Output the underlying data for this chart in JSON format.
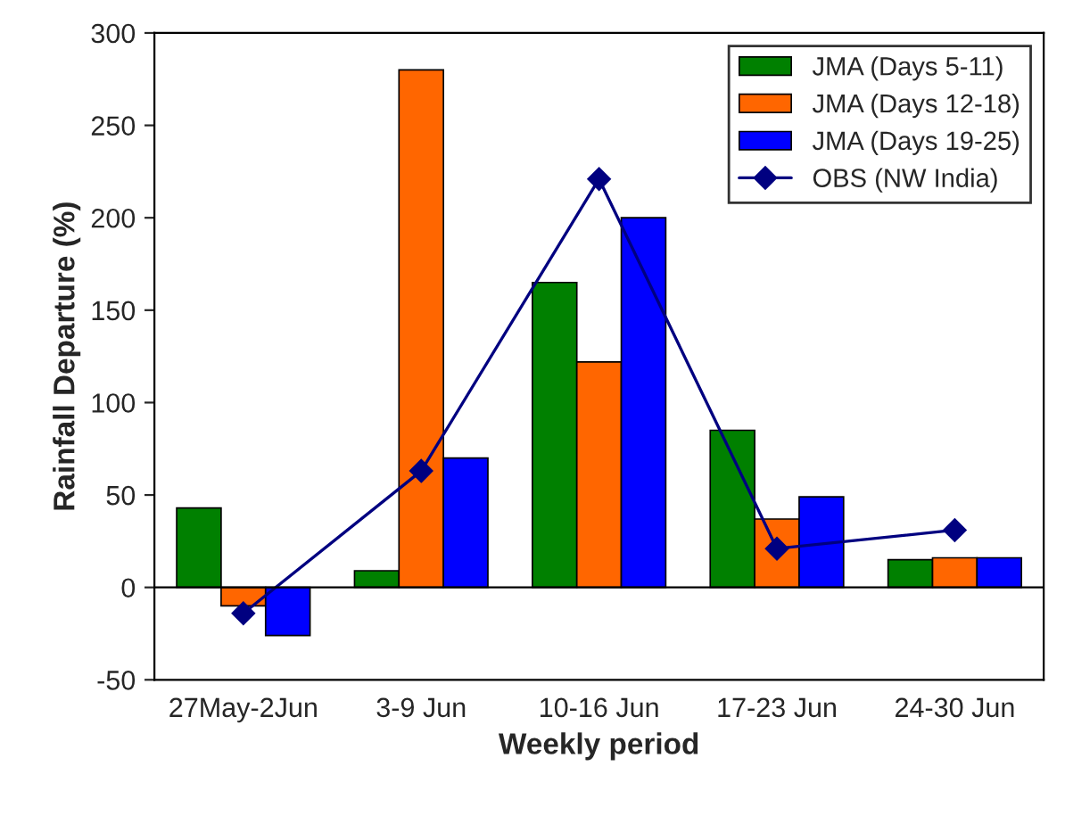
{
  "chart_data": {
    "type": "bar",
    "xlabel": "Weekly period",
    "ylabel": "Rainfall Departure (%)",
    "categories": [
      "27May-2Jun",
      "3-9 Jun",
      "10-16 Jun",
      "17-23 Jun",
      "24-30 Jun"
    ],
    "series": [
      {
        "name": "JMA (Days 5-11)",
        "color": "#008000",
        "values": [
          43,
          9,
          165,
          85,
          15
        ]
      },
      {
        "name": "JMA (Days 12-18)",
        "color": "#ff6600",
        "values": [
          -10,
          280,
          122,
          37,
          16
        ]
      },
      {
        "name": "JMA (Days 19-25)",
        "color": "#0000ff",
        "values": [
          -26,
          70,
          200,
          49,
          16
        ]
      },
      {
        "name": "OBS (NW India)",
        "color": "#000080",
        "type": "line",
        "marker": "diamond",
        "values": [
          -14,
          63,
          221,
          21,
          31
        ]
      }
    ],
    "ylim": [
      -50,
      300
    ],
    "yticks": [
      -50,
      0,
      50,
      100,
      150,
      200,
      250,
      300
    ],
    "grid": false,
    "ref_lines": [
      {
        "axis": "y",
        "value": 0,
        "color": "#000000"
      }
    ],
    "legend": "top right"
  }
}
